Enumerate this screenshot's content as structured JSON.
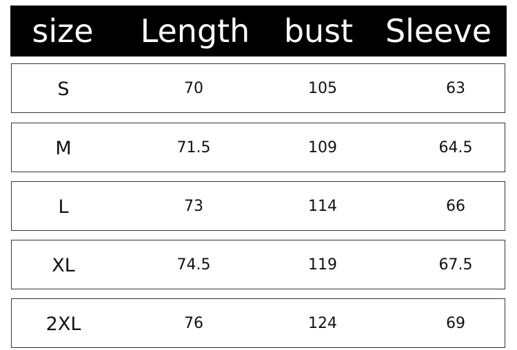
{
  "headers": [
    "size",
    "Length",
    "bust",
    "Sleeve"
  ],
  "rows": [
    {
      "size": "S",
      "length": "70",
      "bust": "105",
      "sleeve": "63"
    },
    {
      "size": "M",
      "length": "71.5",
      "bust": "109",
      "sleeve": "64.5"
    },
    {
      "size": "L",
      "length": "73",
      "bust": "114",
      "sleeve": "66"
    },
    {
      "size": "XL",
      "length": "74.5",
      "bust": "119",
      "sleeve": "67.5"
    },
    {
      "size": "2XL",
      "length": "76",
      "bust": "124",
      "sleeve": "69"
    }
  ]
}
